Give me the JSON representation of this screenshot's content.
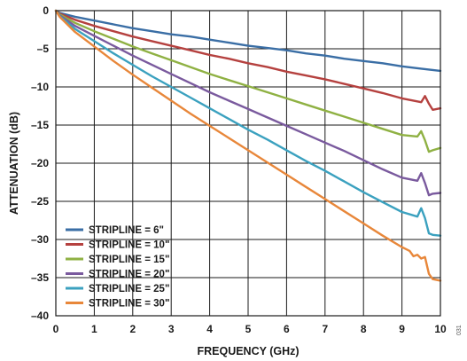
{
  "chart_data": {
    "type": "line",
    "title": "",
    "xlabel": "FREQUENCY (GHz)",
    "ylabel": "ATTENUATION (dB)",
    "xlim": [
      0,
      10
    ],
    "ylim": [
      -40,
      0
    ],
    "xticks": [
      0,
      1,
      2,
      3,
      4,
      5,
      6,
      7,
      8,
      9,
      10
    ],
    "yticks": [
      0,
      -5,
      -10,
      -15,
      -20,
      -25,
      -30,
      -35,
      -40
    ],
    "xtick_labels": [
      "0",
      "1",
      "2",
      "3",
      "4",
      "5",
      "6",
      "7",
      "8",
      "9",
      "10"
    ],
    "ytick_labels": [
      "0",
      "–5",
      "–10",
      "–15",
      "–20",
      "–25",
      "–30",
      "–35",
      "–40"
    ],
    "grid": true,
    "legend_position": "bottom-left",
    "series": [
      {
        "name": "STRIPLINE = 6\"",
        "color": "#3a6ea5",
        "x": [
          0,
          0.1,
          0.5,
          1,
          1.5,
          2,
          2.5,
          3,
          3.5,
          4,
          4.5,
          5,
          5.5,
          6,
          6.5,
          7,
          7.5,
          8,
          8.5,
          9,
          9.5,
          10
        ],
        "y": [
          0,
          -0.3,
          -0.8,
          -1.3,
          -1.8,
          -2.3,
          -2.7,
          -3.1,
          -3.4,
          -3.8,
          -4.2,
          -4.6,
          -4.9,
          -5.2,
          -5.6,
          -5.9,
          -6.3,
          -6.6,
          -6.9,
          -7.3,
          -7.6,
          -7.9
        ]
      },
      {
        "name": "STRIPLINE = 10\"",
        "color": "#b5413f",
        "x": [
          0,
          0.1,
          0.5,
          1,
          1.5,
          2,
          2.5,
          3,
          3.5,
          4,
          4.5,
          5,
          5.5,
          6,
          6.5,
          7,
          7.5,
          8,
          8.5,
          9,
          9.5,
          9.6,
          9.7,
          9.8,
          10
        ],
        "y": [
          0,
          -0.4,
          -1.2,
          -2.0,
          -2.7,
          -3.4,
          -4.0,
          -4.6,
          -5.2,
          -5.8,
          -6.3,
          -6.9,
          -7.4,
          -8.0,
          -8.5,
          -9.0,
          -9.6,
          -10.2,
          -10.8,
          -11.5,
          -12.0,
          -11.2,
          -12.2,
          -13.0,
          -12.8
        ]
      },
      {
        "name": "STRIPLINE = 15\"",
        "color": "#8fb143",
        "x": [
          0,
          0.1,
          0.5,
          1,
          1.5,
          2,
          2.5,
          3,
          3.5,
          4,
          4.5,
          5,
          5.5,
          6,
          6.5,
          7,
          7.5,
          8,
          8.5,
          9,
          9.4,
          9.5,
          9.6,
          9.7,
          9.8,
          10
        ],
        "y": [
          0,
          -0.5,
          -1.6,
          -2.7,
          -3.7,
          -4.7,
          -5.6,
          -6.5,
          -7.4,
          -8.3,
          -9.1,
          -9.9,
          -10.7,
          -11.5,
          -12.3,
          -13.1,
          -13.9,
          -14.7,
          -15.5,
          -16.3,
          -16.5,
          -15.8,
          -17.0,
          -18.5,
          -18.3,
          -18.0
        ]
      },
      {
        "name": "STRIPLINE = 20\"",
        "color": "#7a5a9e",
        "x": [
          0,
          0.1,
          0.5,
          1,
          1.5,
          2,
          2.5,
          3,
          3.5,
          4,
          4.5,
          5,
          5.5,
          6,
          6.5,
          7,
          7.5,
          8,
          8.5,
          9,
          9.4,
          9.5,
          9.6,
          9.7,
          9.8,
          10
        ],
        "y": [
          0,
          -0.6,
          -2.0,
          -3.3,
          -4.6,
          -5.9,
          -7.1,
          -8.3,
          -9.5,
          -10.7,
          -11.8,
          -12.9,
          -14.0,
          -15.1,
          -16.2,
          -17.3,
          -18.4,
          -19.6,
          -20.8,
          -21.9,
          -22.3,
          -21.3,
          -22.6,
          -24.2,
          -24.0,
          -23.9
        ]
      },
      {
        "name": "STRIPLINE = 25\"",
        "color": "#3ba1bf",
        "x": [
          0,
          0.1,
          0.5,
          1,
          1.5,
          2,
          2.5,
          3,
          3.5,
          4,
          4.5,
          5,
          5.5,
          6,
          6.5,
          7,
          7.5,
          8,
          8.5,
          9,
          9.4,
          9.5,
          9.6,
          9.7,
          9.8,
          10
        ],
        "y": [
          0,
          -0.7,
          -2.4,
          -4.0,
          -5.6,
          -7.1,
          -8.6,
          -10.0,
          -11.4,
          -12.8,
          -14.2,
          -15.6,
          -16.9,
          -18.3,
          -19.7,
          -21.0,
          -22.4,
          -23.8,
          -25.1,
          -26.4,
          -27.0,
          -25.9,
          -27.2,
          -29.2,
          -29.4,
          -29.5
        ]
      },
      {
        "name": "STRIPLINE = 30\"",
        "color": "#e8873a",
        "x": [
          0,
          0.1,
          0.5,
          1,
          1.5,
          2,
          2.5,
          3,
          3.5,
          4,
          4.5,
          5,
          5.5,
          6,
          6.5,
          7,
          7.5,
          8,
          8.5,
          9,
          9.2,
          9.3,
          9.4,
          9.5,
          9.6,
          9.7,
          9.8,
          10
        ],
        "y": [
          0,
          -0.8,
          -2.8,
          -4.7,
          -6.6,
          -8.4,
          -10.1,
          -11.8,
          -13.5,
          -15.1,
          -16.7,
          -18.3,
          -19.9,
          -21.5,
          -23.1,
          -24.7,
          -26.3,
          -27.9,
          -29.5,
          -31.0,
          -31.5,
          -32.2,
          -32.0,
          -32.5,
          -32.3,
          -34.5,
          -35.2,
          -35.4
        ]
      }
    ]
  },
  "figure_id": "031"
}
